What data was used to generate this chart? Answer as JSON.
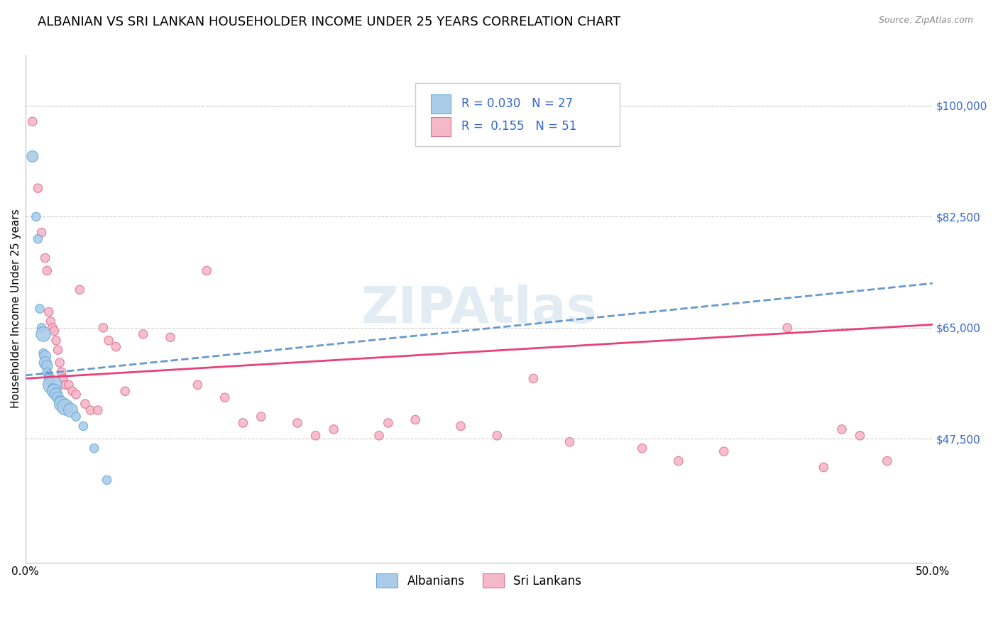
{
  "title": "ALBANIAN VS SRI LANKAN HOUSEHOLDER INCOME UNDER 25 YEARS CORRELATION CHART",
  "source": "Source: ZipAtlas.com",
  "ylabel": "Householder Income Under 25 years",
  "xlim": [
    0.0,
    0.5
  ],
  "ylim": [
    28000,
    108000
  ],
  "yticks": [
    47500,
    65000,
    82500,
    100000
  ],
  "ytick_labels": [
    "$47,500",
    "$65,000",
    "$82,500",
    "$100,000"
  ],
  "xticks": [
    0.0,
    0.1,
    0.2,
    0.3,
    0.4,
    0.5
  ],
  "xtick_labels": [
    "0.0%",
    "",
    "",
    "",
    "",
    "50.0%"
  ],
  "albanian_color": "#aacce8",
  "albanian_edge": "#6aaad4",
  "srilanka_color": "#f4b8c8",
  "srilanka_edge": "#e07090",
  "trend_albanian_color": "#6699cc",
  "trend_srilanka_color": "#e8407a",
  "legend_r_color": "#3366cc",
  "albanian_R": 0.03,
  "albanian_N": 27,
  "srilanka_R": 0.155,
  "srilanka_N": 51,
  "albanian_trend_x": [
    0.0,
    0.5
  ],
  "albanian_trend_y": [
    57500,
    72000
  ],
  "srilanka_trend_x": [
    0.0,
    0.5
  ],
  "srilanka_trend_y": [
    57000,
    65500
  ],
  "albanian_x": [
    0.004,
    0.006,
    0.007,
    0.008,
    0.009,
    0.01,
    0.01,
    0.011,
    0.011,
    0.012,
    0.012,
    0.013,
    0.013,
    0.014,
    0.015,
    0.015,
    0.016,
    0.017,
    0.018,
    0.019,
    0.02,
    0.022,
    0.025,
    0.028,
    0.032,
    0.038,
    0.045
  ],
  "albanian_y": [
    92000,
    82500,
    79000,
    68000,
    65000,
    64000,
    61000,
    60500,
    59500,
    59000,
    58000,
    57500,
    57000,
    56500,
    56000,
    55500,
    55000,
    54500,
    54000,
    53500,
    53000,
    52500,
    52000,
    51000,
    49500,
    46000,
    41000
  ],
  "albanian_sizes": [
    130,
    80,
    80,
    80,
    80,
    220,
    80,
    130,
    150,
    130,
    80,
    80,
    80,
    80,
    360,
    80,
    200,
    160,
    130,
    100,
    220,
    260,
    200,
    80,
    80,
    80,
    80
  ],
  "srilanka_x": [
    0.004,
    0.007,
    0.009,
    0.011,
    0.012,
    0.013,
    0.014,
    0.015,
    0.016,
    0.017,
    0.018,
    0.019,
    0.02,
    0.021,
    0.022,
    0.024,
    0.026,
    0.028,
    0.03,
    0.033,
    0.036,
    0.04,
    0.043,
    0.046,
    0.05,
    0.055,
    0.065,
    0.08,
    0.095,
    0.11,
    0.13,
    0.15,
    0.17,
    0.195,
    0.215,
    0.24,
    0.26,
    0.3,
    0.34,
    0.385,
    0.42,
    0.45,
    0.46,
    0.475,
    0.1,
    0.12,
    0.16,
    0.2,
    0.28,
    0.36,
    0.44
  ],
  "srilanka_y": [
    97500,
    87000,
    80000,
    76000,
    74000,
    67500,
    66000,
    65000,
    64500,
    63000,
    61500,
    59500,
    58000,
    57000,
    56000,
    56000,
    55000,
    54500,
    71000,
    53000,
    52000,
    52000,
    65000,
    63000,
    62000,
    55000,
    64000,
    63500,
    56000,
    54000,
    51000,
    50000,
    49000,
    48000,
    50500,
    49500,
    48000,
    47000,
    46000,
    45500,
    65000,
    49000,
    48000,
    44000,
    74000,
    50000,
    48000,
    50000,
    57000,
    44000,
    43000
  ],
  "srilanka_sizes": [
    80,
    80,
    80,
    80,
    80,
    80,
    80,
    80,
    80,
    80,
    80,
    80,
    80,
    80,
    80,
    80,
    80,
    80,
    80,
    80,
    80,
    80,
    80,
    80,
    80,
    80,
    80,
    80,
    80,
    80,
    80,
    80,
    80,
    80,
    80,
    80,
    80,
    80,
    80,
    80,
    80,
    80,
    80,
    80,
    80,
    80,
    80,
    80,
    80,
    80,
    80
  ],
  "background_color": "#ffffff",
  "grid_color": "#cccccc",
  "title_fontsize": 13,
  "label_fontsize": 11,
  "tick_fontsize": 11
}
